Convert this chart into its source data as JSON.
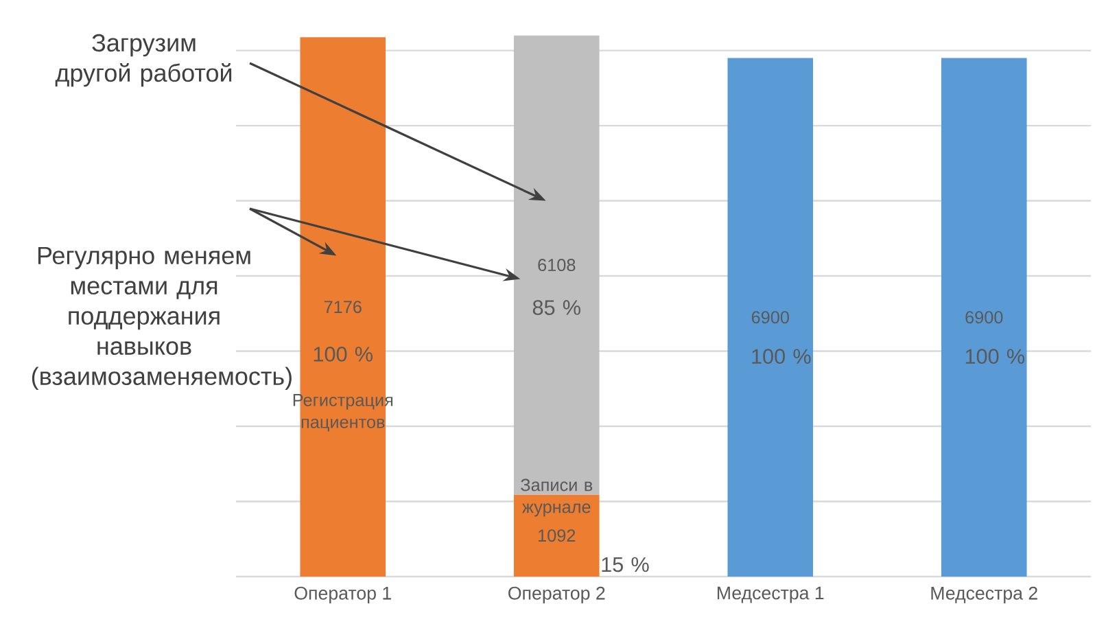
{
  "chart_data": {
    "type": "bar",
    "stacked": true,
    "categories": [
      "Оператор 1",
      "Оператор 2",
      "Медсестра 1",
      "Медсестра 2"
    ],
    "series": [
      {
        "colors": [
          "#ed7d31",
          "#ed7d31",
          "#5b9bd5",
          "#5b9bd5"
        ],
        "values": [
          7176,
          1092,
          6900,
          6900
        ]
      },
      {
        "color": "#bfbfbf",
        "values": [
          null,
          6108,
          null,
          null
        ]
      }
    ],
    "data_labels": true,
    "yticks": [
      {
        "value": 0,
        "label": null
      },
      {
        "value": 1000,
        "label": null
      },
      {
        "value": 2000,
        "label": null
      },
      {
        "value": 3000,
        "label": null
      },
      {
        "value": 4000,
        "label": null
      },
      {
        "value": 5000,
        "label": null
      },
      {
        "value": 6000,
        "label": null
      },
      {
        "value": 7000,
        "label": null
      }
    ],
    "grid": "y",
    "tick_labels": "x",
    "annotations": [
      "Загрузим другой работой",
      "Регулярно меняем местами для поддержания навыков (взаимозаменяемость)",
      "100 %",
      "Регистрация пациентов",
      "85 %",
      "Записи в журнале",
      "15 %",
      "100 %",
      "100 %"
    ]
  }
}
